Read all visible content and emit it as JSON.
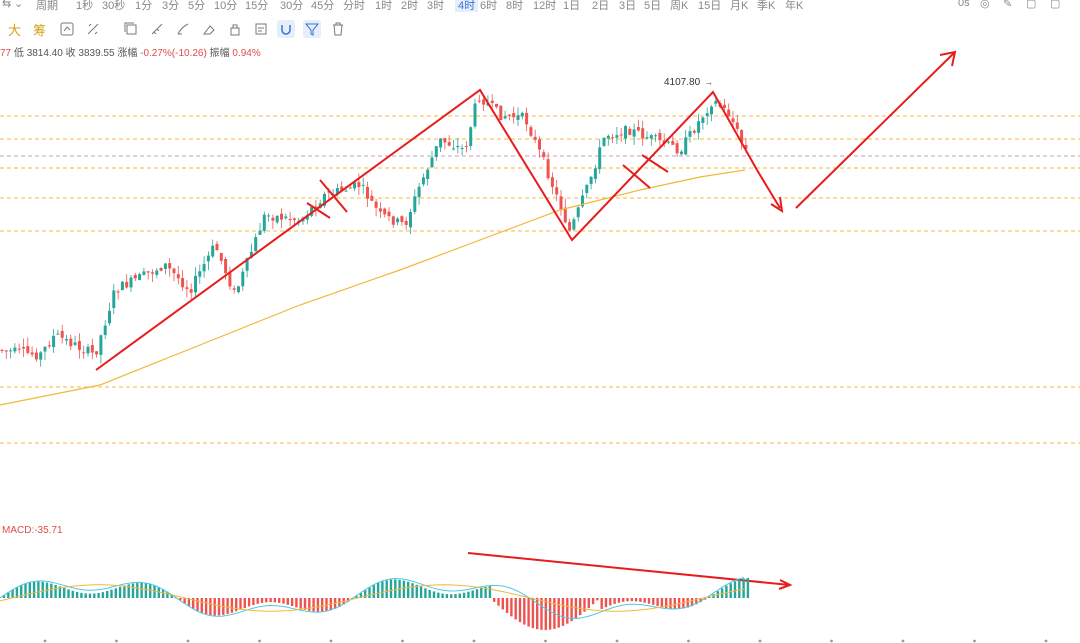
{
  "topbar": {
    "period_menu": "周期",
    "intervals": [
      "1秒",
      "30秒",
      "1分",
      "3分",
      "5分",
      "10分",
      "15分",
      "30分",
      "45分",
      "分时",
      "1时",
      "2时",
      "3时",
      "4时",
      "6时",
      "8时",
      "12时",
      "1日",
      "2日",
      "3日",
      "5日",
      "周K",
      "15日",
      "月K",
      "季K",
      "年K"
    ],
    "active_interval": "4时",
    "right_label": "0s"
  },
  "toolbar": {
    "da_label": "大",
    "chou_label": "筹"
  },
  "info": {
    "prefix": "77",
    "low_label": "低",
    "low_value": "3814.40",
    "close_label": "收",
    "close_value": "3839.55",
    "change_label": "涨幅",
    "change_value": "-0.27%(-10.26)",
    "amp_label": "振幅",
    "amp_value": "0.94%"
  },
  "chart_data": {
    "type": "candlestick",
    "high_marker_label": "4107.80",
    "up_color": "#26a69a",
    "down_color": "#ef5350",
    "ma_color": "#f2b83b",
    "annotation_color": "#e81c1c"
  },
  "macd": {
    "label": "MACD:-35.71"
  }
}
